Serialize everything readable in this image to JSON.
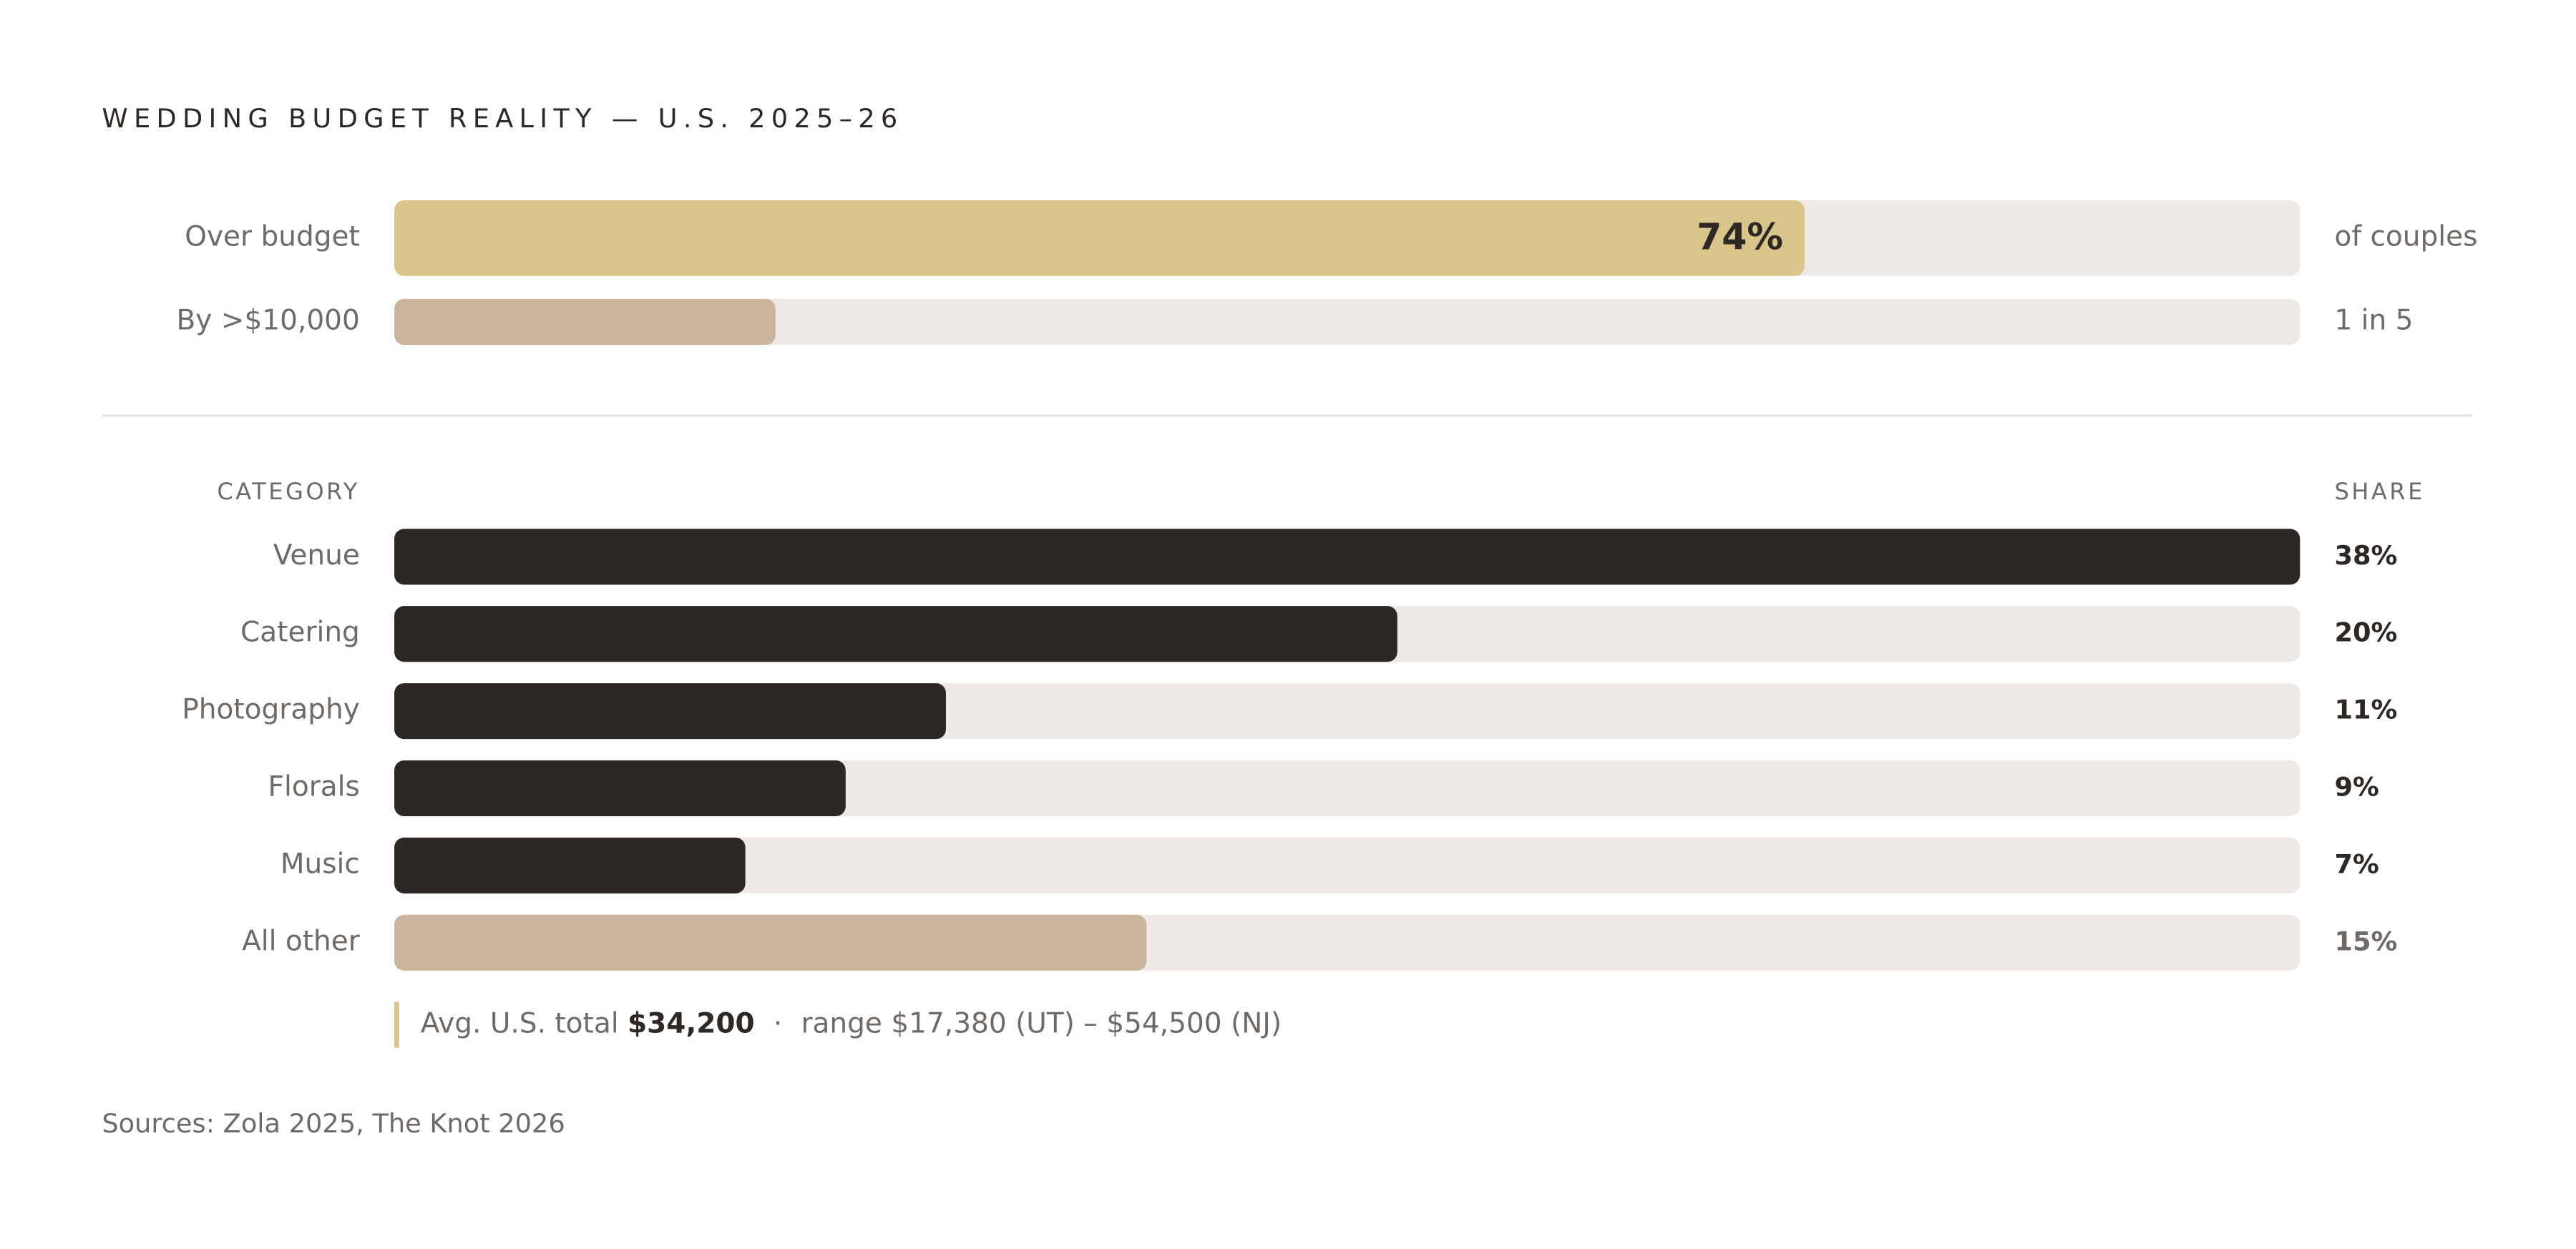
{
  "chart_data": [
    {
      "type": "bar",
      "orientation": "horizontal",
      "title": "WEDDING BUDGET REALITY — U.S. 2025–26",
      "categories": [
        "Over budget",
        "By >$10,000"
      ],
      "values": [
        74,
        20
      ],
      "value_labels": [
        "74%",
        "1 in 5"
      ],
      "annotation": "of couples",
      "colors": [
        "#d9c48a",
        "#c9b59e"
      ],
      "track_color": "#eee9e4",
      "xlim": [
        0,
        100
      ]
    },
    {
      "type": "bar",
      "orientation": "horizontal",
      "category_header": "CATEGORY",
      "value_header": "SHARE",
      "categories": [
        "Venue",
        "Catering",
        "Photography",
        "Florals",
        "Music",
        "All other"
      ],
      "values": [
        38,
        20,
        11,
        9,
        7,
        15
      ],
      "value_labels": [
        "38%",
        "20%",
        "11%",
        "9%",
        "7%",
        "15%"
      ],
      "colors": [
        "#2d2824",
        "#2d2824",
        "#2d2824",
        "#2d2824",
        "#2d2824",
        "#c9b59e"
      ],
      "track_color": "#eee9e4",
      "xlim": [
        0,
        38
      ],
      "note": {
        "lead": "Avg. U.S. total",
        "total": "$34,200",
        "separator": "·",
        "range": "range $17,380 (UT) – $54,500 (NJ)"
      },
      "source": "Sources: Zola 2025, The Knot 2026"
    }
  ]
}
